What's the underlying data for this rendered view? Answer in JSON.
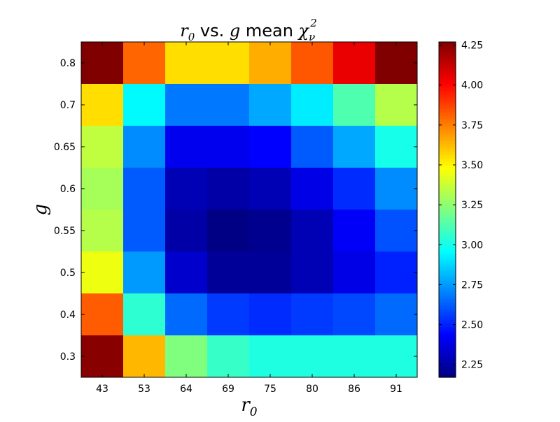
{
  "chart_data": {
    "type": "heatmap",
    "title": "r_0 vs. g mean χ_ν^2",
    "title_parts": {
      "sym_r": "r",
      "sub_0": "0",
      "text_vs": " vs. ",
      "sym_g": "g",
      "text_mean": " mean ",
      "sym_chi": "χ",
      "sub_nu": "ν",
      "sup_2": "2"
    },
    "xlabel": "r_0",
    "xlabel_parts": {
      "sym": "r",
      "sub": "0"
    },
    "ylabel": "g",
    "x_categories": [
      "43",
      "53",
      "64",
      "69",
      "75",
      "80",
      "86",
      "91"
    ],
    "y_categories": [
      "0.8",
      "0.7",
      "0.65",
      "0.6",
      "0.55",
      "0.5",
      "0.4",
      "0.3"
    ],
    "values": [
      [
        4.27,
        3.8,
        3.55,
        3.55,
        3.65,
        3.83,
        4.05,
        4.27
      ],
      [
        3.55,
        2.95,
        2.68,
        2.68,
        2.78,
        2.92,
        3.12,
        3.33
      ],
      [
        3.35,
        2.72,
        2.4,
        2.4,
        2.43,
        2.62,
        2.78,
        3.0
      ],
      [
        3.3,
        2.62,
        2.28,
        2.25,
        2.28,
        2.38,
        2.52,
        2.72
      ],
      [
        3.33,
        2.62,
        2.25,
        2.18,
        2.2,
        2.28,
        2.42,
        2.6
      ],
      [
        3.45,
        2.75,
        2.33,
        2.22,
        2.22,
        2.28,
        2.38,
        2.5
      ],
      [
        3.82,
        3.05,
        2.65,
        2.55,
        2.52,
        2.55,
        2.58,
        2.65
      ],
      [
        4.25,
        3.63,
        3.22,
        3.07,
        3.02,
        3.02,
        3.02,
        3.02
      ]
    ],
    "colorbar": {
      "colormap": "jet",
      "vmin": 2.17,
      "vmax": 4.27,
      "ticks": [
        2.25,
        2.5,
        2.75,
        3.0,
        3.25,
        3.5,
        3.75,
        4.0,
        4.25
      ],
      "tick_labels": [
        "2.25",
        "2.50",
        "2.75",
        "3.00",
        "3.25",
        "3.50",
        "3.75",
        "4.00",
        "4.25"
      ]
    },
    "grid": false,
    "legend": "none"
  },
  "colors": {
    "frame": "#000000",
    "background": "#ffffff"
  }
}
